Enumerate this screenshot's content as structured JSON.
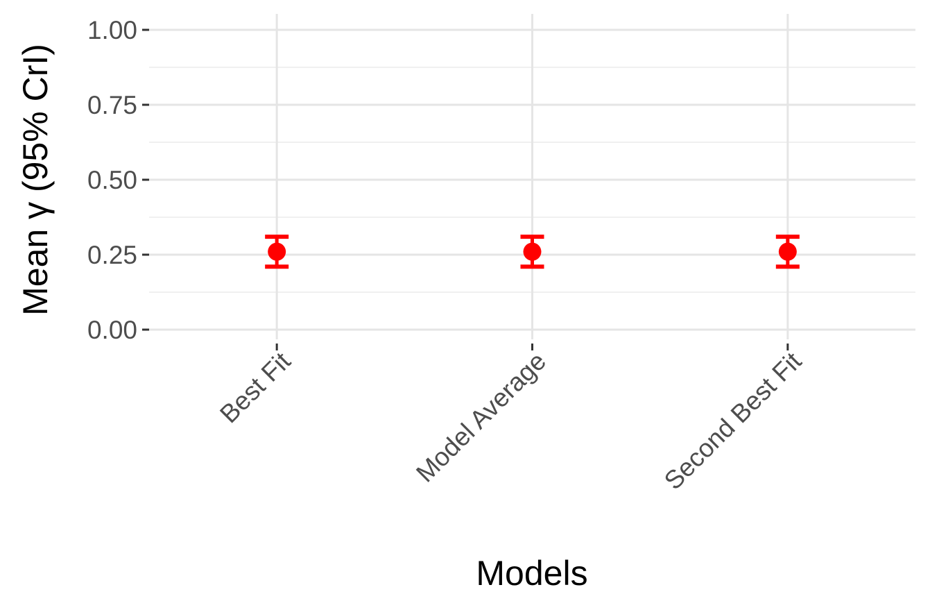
{
  "chart_data": {
    "type": "scatter",
    "xlabel": "Models",
    "ylabel": "Mean γ (95% CrI)",
    "categories": [
      "Best Fit",
      "Model Average",
      "Second Best Fit"
    ],
    "series": [
      {
        "values": [
          0.26,
          0.26,
          0.26
        ],
        "lower": [
          0.21,
          0.21,
          0.21
        ],
        "upper": [
          0.31,
          0.31,
          0.31
        ]
      }
    ],
    "ylim": [
      0,
      1
    ],
    "yticks": [
      "0.00",
      "0.25",
      "0.50",
      "0.75",
      "1.00"
    ],
    "grid": true,
    "legend": "none",
    "colors": {
      "point": "#ff0000"
    }
  }
}
